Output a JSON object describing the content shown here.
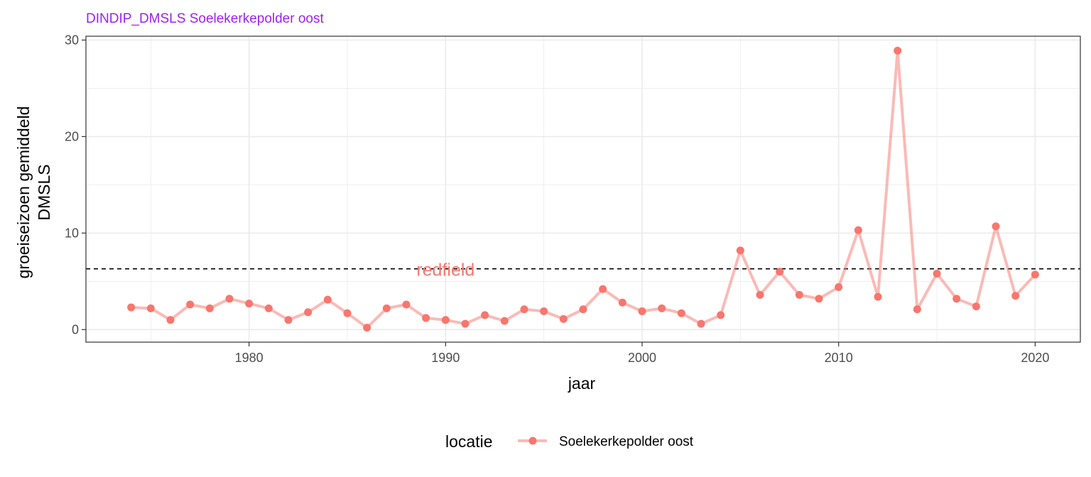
{
  "chart_data": {
    "type": "line",
    "title": "DINDIP_DMSLS Soelekerkepolder oost",
    "xlabel": "jaar",
    "ylabel_lines": [
      "groeiseizoen gemiddeld",
      "DMSLS"
    ],
    "xlim": [
      1971.7,
      2022.3
    ],
    "ylim": [
      -1.3,
      30.4
    ],
    "x_ticks": [
      1980,
      1990,
      2000,
      2010,
      2020
    ],
    "y_ticks": [
      0,
      10,
      20,
      30
    ],
    "grid": true,
    "legend": {
      "title": "locatie",
      "position": "bottom",
      "entries": [
        "Soelekerkepolder oost"
      ]
    },
    "reference_line": {
      "y": 6.3,
      "label": "redfield",
      "label_x": 1990,
      "style": "dashed"
    },
    "series": [
      {
        "name": "Soelekerkepolder oost",
        "x": [
          1974,
          1975,
          1976,
          1977,
          1978,
          1979,
          1980,
          1981,
          1982,
          1983,
          1984,
          1985,
          1986,
          1987,
          1988,
          1989,
          1990,
          1991,
          1992,
          1993,
          1994,
          1995,
          1996,
          1997,
          1998,
          1999,
          2000,
          2001,
          2002,
          2003,
          2004,
          2005,
          2006,
          2007,
          2008,
          2009,
          2010,
          2011,
          2012,
          2013,
          2014,
          2015,
          2016,
          2017,
          2018,
          2019,
          2020
        ],
        "y": [
          2.3,
          2.2,
          1.0,
          2.6,
          2.2,
          3.2,
          2.7,
          2.2,
          1.0,
          1.8,
          3.1,
          1.7,
          0.2,
          2.2,
          2.6,
          1.2,
          1.0,
          0.6,
          1.5,
          0.9,
          2.1,
          1.9,
          1.1,
          2.1,
          4.2,
          2.8,
          1.9,
          2.2,
          1.7,
          0.6,
          1.5,
          8.2,
          3.6,
          6.0,
          3.6,
          3.2,
          4.4,
          10.3,
          3.4,
          28.9,
          2.1,
          5.8,
          3.2,
          2.4,
          10.7,
          3.5,
          5.7
        ]
      }
    ],
    "colors": {
      "point": "#f8766d",
      "line": "#f8766d",
      "title": "#a020f0",
      "reference": "#000000",
      "grid": "#ebebeb"
    }
  }
}
